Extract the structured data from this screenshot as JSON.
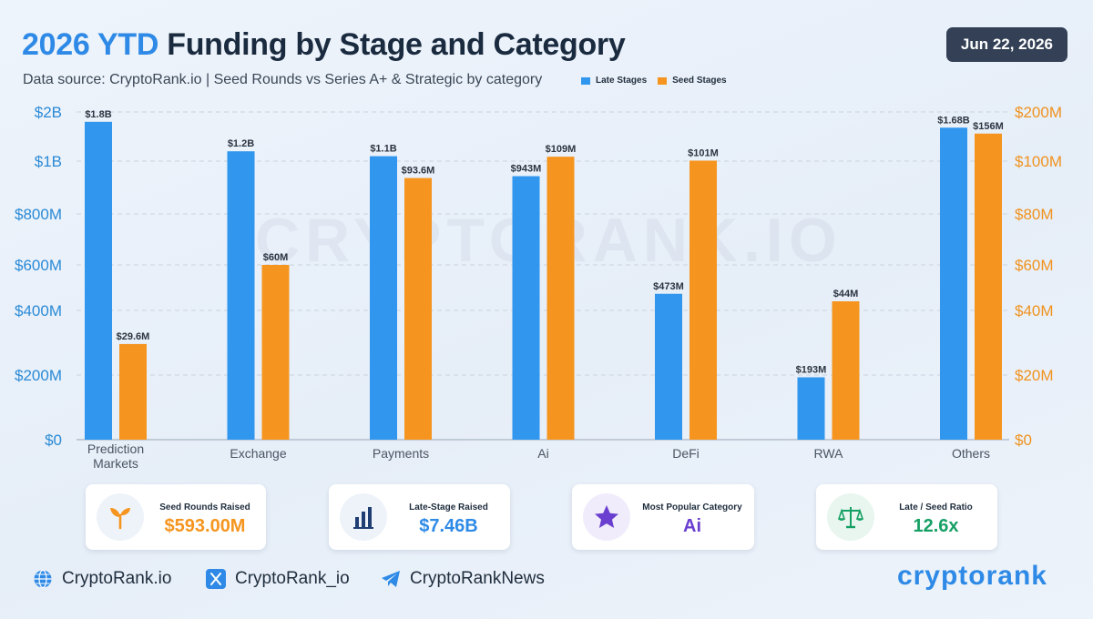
{
  "header": {
    "title_accent": "2026 YTD",
    "title_rest": "Funding by Stage and Category",
    "subtitle": "Data source: CryptoRank.io | Seed Rounds vs Series A+ & Strategic by category",
    "date": "Jun 22, 2026"
  },
  "legend": [
    {
      "label": "Late Stages",
      "color": "#3096ee"
    },
    {
      "label": "Seed Stages",
      "color": "#f5951f"
    }
  ],
  "watermark": "CRYPTORANK.IO",
  "chart_data": {
    "type": "bar",
    "categories": [
      "Prediction Markets",
      "Exchange",
      "Payments",
      "Ai",
      "DeFi",
      "RWA",
      "Others"
    ],
    "series": [
      {
        "name": "Late Stages",
        "axis": "left",
        "color": "#3096ee",
        "values": [
          1800,
          1200,
          1100,
          943,
          473,
          193,
          1680
        ],
        "labels": [
          "$1.8B",
          "$1.2B",
          "$1.1B",
          "$943M",
          "$473M",
          "$193M",
          "$1.68B"
        ]
      },
      {
        "name": "Seed Stages",
        "axis": "right",
        "color": "#f5951f",
        "values": [
          29.6,
          60,
          93.6,
          109,
          101,
          44,
          156
        ],
        "labels": [
          "$29.6M",
          "$60M",
          "$93.6M",
          "$109M",
          "$101M",
          "$44M",
          "$156M"
        ]
      }
    ],
    "left_axis": {
      "ticks": [
        0,
        200,
        400,
        600,
        800,
        1000,
        2000
      ],
      "tick_labels": [
        "$0",
        "$200M",
        "$400M",
        "$600M",
        "$800M",
        "$1B",
        "$2B"
      ],
      "color": "#2a8ad6"
    },
    "right_axis": {
      "ticks": [
        0,
        20,
        40,
        60,
        80,
        100,
        200
      ],
      "tick_labels": [
        "$0",
        "$20M",
        "$40M",
        "$60M",
        "$80M",
        "$100M",
        "$200M"
      ],
      "color": "#f0921e"
    },
    "grid": true
  },
  "cards": [
    {
      "label": "Seed Rounds Raised",
      "value": "$593.00M",
      "icon": "sprout-icon",
      "color": "#f5951f",
      "bg": "#eef3fa"
    },
    {
      "label": "Late-Stage Raised",
      "value": "$7.46B",
      "icon": "bar-chart-icon",
      "color": "#2e8ae6",
      "bg": "#eef3fa"
    },
    {
      "label": "Most Popular Category",
      "value": "Ai",
      "icon": "star-icon",
      "color": "#6a3fcf",
      "bg": "#f1ecfb"
    },
    {
      "label": "Late / Seed Ratio",
      "value": "12.6x",
      "icon": "scale-icon",
      "color": "#16a065",
      "bg": "#e8f6ef"
    }
  ],
  "footer": {
    "website": "CryptoRank.io",
    "twitter": "CryptoRank_io",
    "telegram": "CryptoRankNews",
    "brand": "cryptorank"
  }
}
